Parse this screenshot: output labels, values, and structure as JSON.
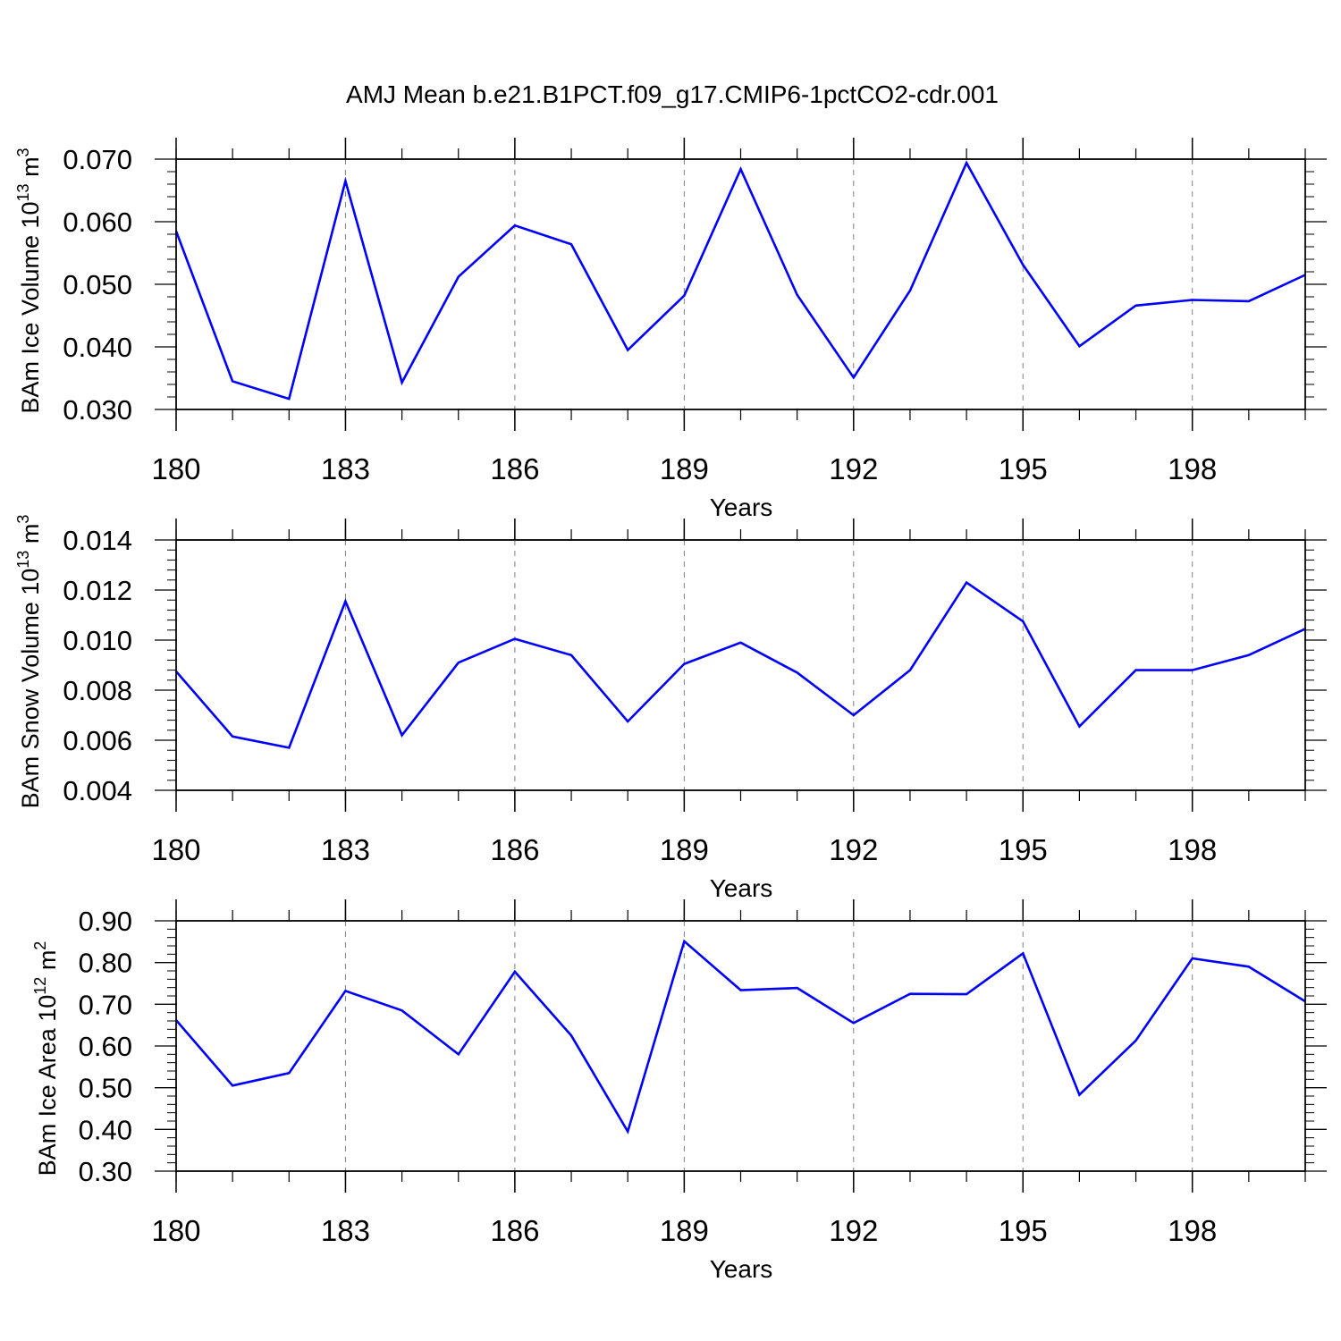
{
  "title": "AMJ Mean b.e21.B1PCT.f09_g17.CMIP6-1pctCO2-cdr.001",
  "colors": {
    "line": "#0000ff",
    "axis": "#000000",
    "grid": "#808080",
    "background": "#ffffff"
  },
  "chart_data": [
    {
      "type": "line",
      "ylabel": {
        "text": "BAm Ice Volume 10",
        "sup": "13",
        "unit": " m",
        "unit_sup": "3"
      },
      "xlabel": "Years",
      "xlim": [
        180,
        200
      ],
      "ylim": [
        0.03,
        0.07
      ],
      "x_ticks": [
        "180",
        "183",
        "186",
        "189",
        "192",
        "195",
        "198"
      ],
      "y_ticks": [
        "0.030",
        "0.040",
        "0.050",
        "0.060",
        "0.070"
      ],
      "grid": "vertical dashed at major x ticks",
      "series": [
        {
          "x": [
            180,
            181,
            182,
            183,
            184,
            185,
            186,
            187,
            188,
            189,
            190,
            191,
            192,
            193,
            194,
            195,
            196,
            197,
            198,
            199,
            200
          ],
          "y": [
            0.0585,
            0.0345,
            0.0317,
            0.0665,
            0.0343,
            0.0512,
            0.0594,
            0.0564,
            0.0395,
            0.0482,
            0.0684,
            0.0483,
            0.0351,
            0.049,
            0.0694,
            0.0531,
            0.0401,
            0.0466,
            0.0475,
            0.0473,
            0.0515
          ]
        }
      ]
    },
    {
      "type": "line",
      "ylabel": {
        "text": "BAm Snow Volume 10",
        "sup": "13",
        "unit": " m",
        "unit_sup": "3"
      },
      "xlabel": "Years",
      "xlim": [
        180,
        200
      ],
      "ylim": [
        0.004,
        0.014
      ],
      "x_ticks": [
        "180",
        "183",
        "186",
        "189",
        "192",
        "195",
        "198"
      ],
      "y_ticks": [
        "0.004",
        "0.006",
        "0.008",
        "0.010",
        "0.012",
        "0.014"
      ],
      "grid": "vertical dashed at major x ticks",
      "series": [
        {
          "x": [
            180,
            181,
            182,
            183,
            184,
            185,
            186,
            187,
            188,
            189,
            190,
            191,
            192,
            193,
            194,
            195,
            196,
            197,
            198,
            199,
            200
          ],
          "y": [
            0.00875,
            0.00615,
            0.0057,
            0.01155,
            0.0062,
            0.0091,
            0.01005,
            0.0094,
            0.00675,
            0.00905,
            0.0099,
            0.0087,
            0.007,
            0.0088,
            0.0123,
            0.01075,
            0.00655,
            0.0088,
            0.0088,
            0.0094,
            0.01045
          ]
        }
      ]
    },
    {
      "type": "line",
      "ylabel": {
        "text": "BAm Ice Area 10",
        "sup": "12",
        "unit": " m",
        "unit_sup": "2"
      },
      "xlabel": "Years",
      "xlim": [
        180,
        200
      ],
      "ylim": [
        0.3,
        0.9
      ],
      "x_ticks": [
        "180",
        "183",
        "186",
        "189",
        "192",
        "195",
        "198"
      ],
      "y_ticks": [
        "0.30",
        "0.40",
        "0.50",
        "0.60",
        "0.70",
        "0.80",
        "0.90"
      ],
      "grid": "vertical dashed at major x ticks",
      "series": [
        {
          "x": [
            180,
            181,
            182,
            183,
            184,
            185,
            186,
            187,
            188,
            189,
            190,
            191,
            192,
            193,
            194,
            195,
            196,
            197,
            198,
            199,
            200
          ],
          "y": [
            0.662,
            0.505,
            0.535,
            0.732,
            0.685,
            0.58,
            0.778,
            0.625,
            0.395,
            0.851,
            0.734,
            0.739,
            0.655,
            0.725,
            0.724,
            0.822,
            0.483,
            0.613,
            0.81,
            0.79,
            0.707
          ]
        }
      ]
    }
  ]
}
